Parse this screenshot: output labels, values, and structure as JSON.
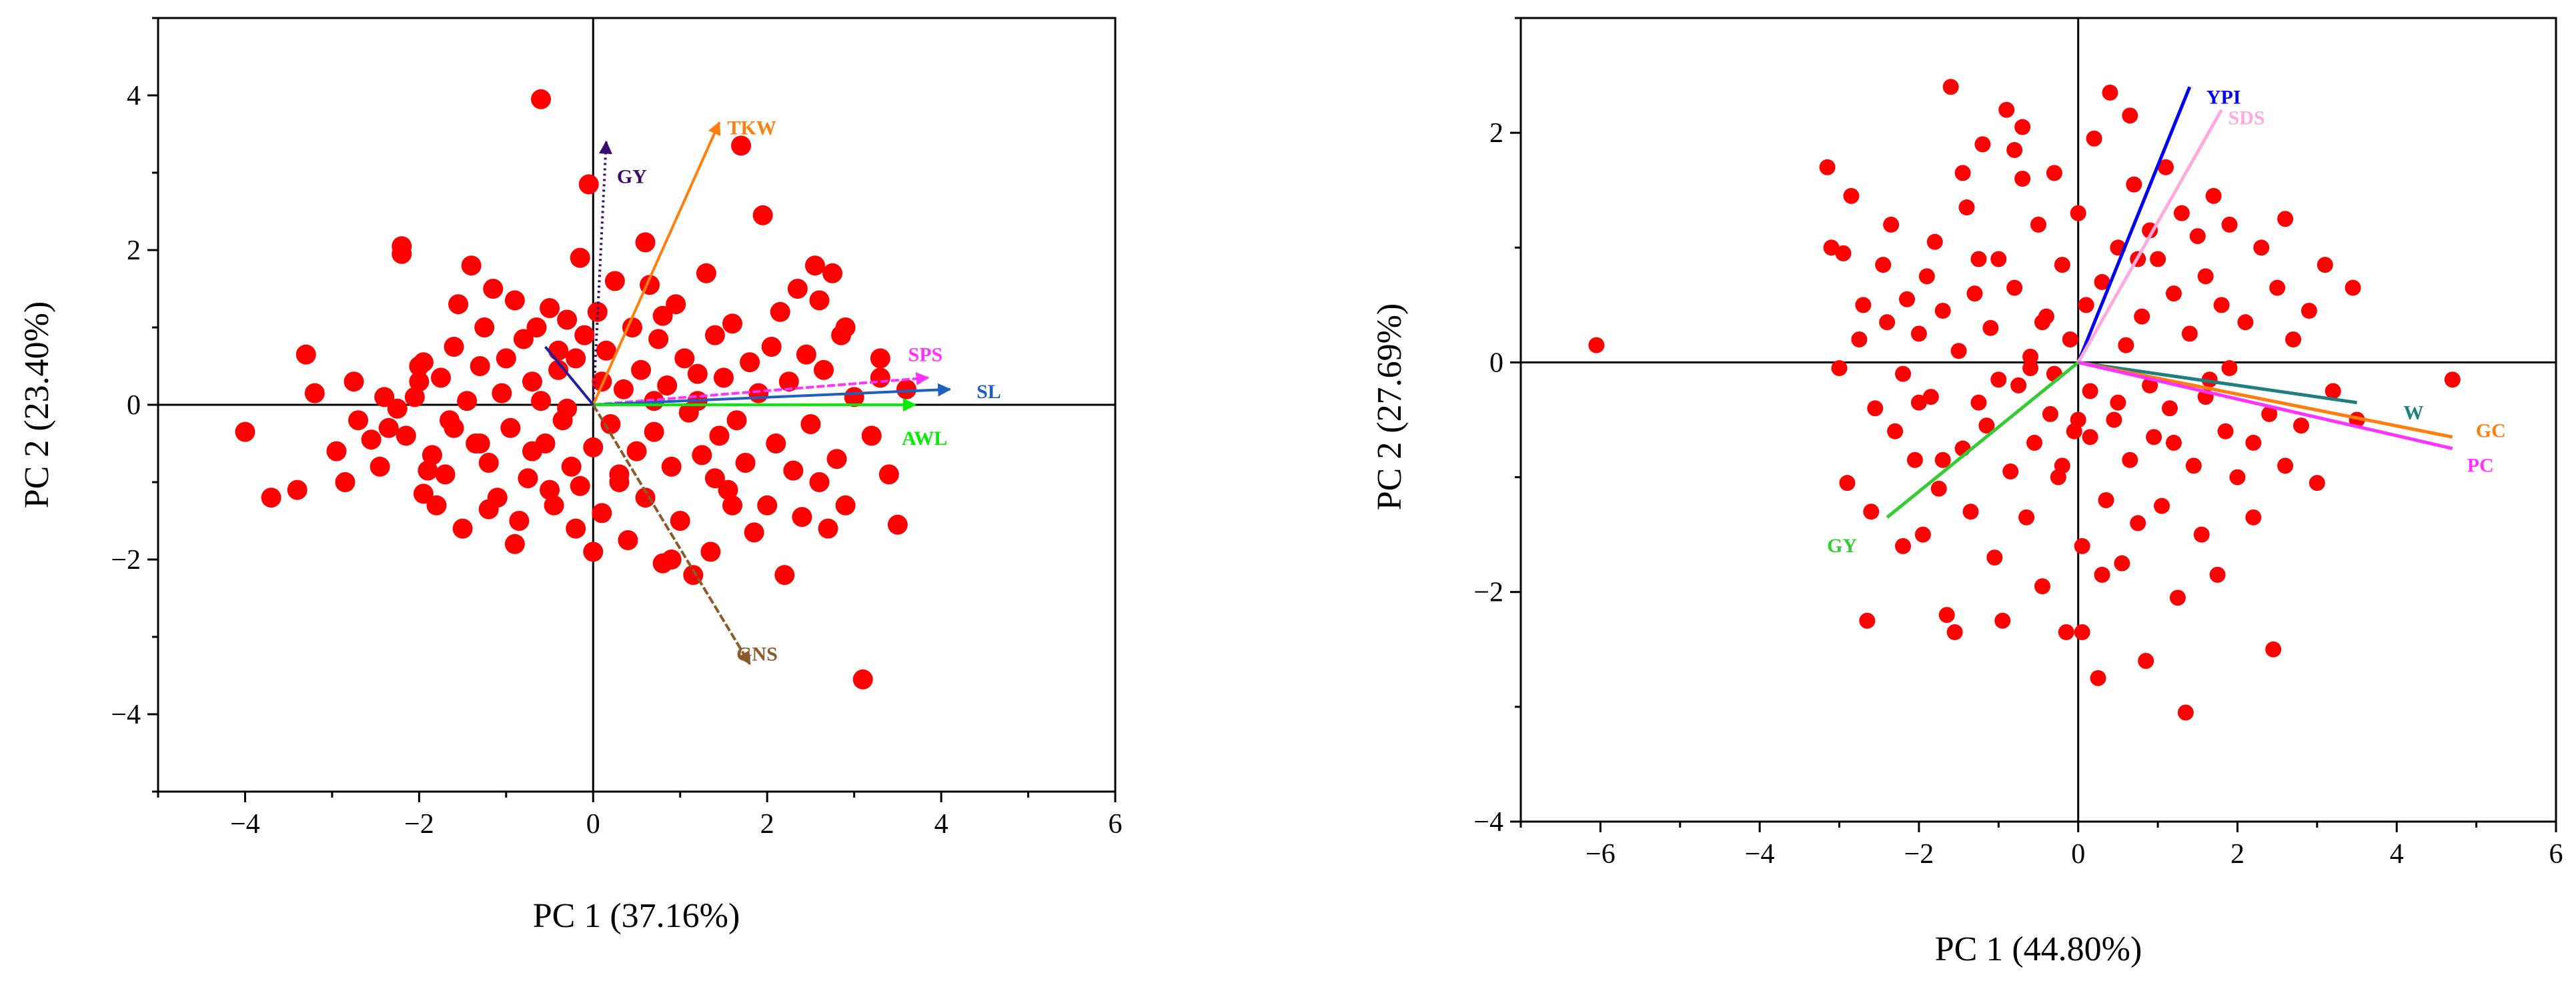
{
  "chart_data": [
    {
      "type": "scatter",
      "subtype": "pca-biplot",
      "xlabel": "PC 1 (37.16%)",
      "ylabel": "PC 2 (23.40%)",
      "xlim": [
        -5,
        6
      ],
      "ylim": [
        -5,
        5
      ],
      "xticks": [
        -4,
        -2,
        0,
        2,
        4,
        6
      ],
      "xtick_labels": [
        "−4",
        "−2",
        "0",
        "2",
        "4",
        "6"
      ],
      "yticks": [
        -4,
        -2,
        0,
        2,
        4
      ],
      "ytick_labels": [
        "−4",
        "−2",
        "0",
        "2",
        "4"
      ],
      "grid": false,
      "point_color": "#ff0000",
      "vectors": [
        {
          "label": "GY",
          "x": 0.15,
          "y": 3.4,
          "color": "#3d0a6b",
          "style": "dotted"
        },
        {
          "label": "TKW",
          "x": 1.45,
          "y": 3.65,
          "color": "#ff7f0e",
          "style": "solid"
        },
        {
          "label": "SPS",
          "x": 3.85,
          "y": 0.35,
          "color": "#ff33ff",
          "style": "dashed"
        },
        {
          "label": "SL",
          "x": 4.1,
          "y": 0.2,
          "color": "#1f5fbf",
          "style": "solid"
        },
        {
          "label": "AWL",
          "x": 3.7,
          "y": 0.0,
          "color": "#00ee00",
          "style": "solid"
        },
        {
          "label": "GNS",
          "x": 1.8,
          "y": -3.35,
          "color": "#8b5a2b",
          "style": "dashed"
        },
        {
          "label": "",
          "x": -0.55,
          "y": 0.75,
          "color": "#1f1f9f",
          "style": "solid"
        }
      ],
      "points": [
        [
          -4.0,
          -0.35
        ],
        [
          -3.7,
          -1.2
        ],
        [
          -3.4,
          -1.1
        ],
        [
          -3.3,
          0.65
        ],
        [
          -3.2,
          0.15
        ],
        [
          -2.95,
          -0.6
        ],
        [
          -2.85,
          -1.0
        ],
        [
          -2.75,
          0.3
        ],
        [
          -2.7,
          -0.2
        ],
        [
          -2.55,
          -0.45
        ],
        [
          -2.45,
          -0.8
        ],
        [
          -2.35,
          -0.3
        ],
        [
          -2.25,
          -0.05
        ],
        [
          -2.15,
          -0.4
        ],
        [
          -2.05,
          0.1
        ],
        [
          -2.0,
          0.3
        ],
        [
          -1.95,
          -1.15
        ],
        [
          -2.2,
          1.95
        ],
        [
          -2.2,
          2.05
        ],
        [
          -2.0,
          0.5
        ],
        [
          -1.95,
          0.55
        ],
        [
          -1.85,
          -0.65
        ],
        [
          -1.8,
          -1.3
        ],
        [
          -1.75,
          0.35
        ],
        [
          -1.7,
          -0.9
        ],
        [
          -1.65,
          -0.2
        ],
        [
          -1.6,
          0.75
        ],
        [
          -1.55,
          1.3
        ],
        [
          -1.5,
          -1.6
        ],
        [
          -1.45,
          0.05
        ],
        [
          -1.4,
          1.8
        ],
        [
          -1.35,
          -0.5
        ],
        [
          -1.3,
          0.5
        ],
        [
          -1.25,
          1.0
        ],
        [
          -1.2,
          -0.75
        ],
        [
          -1.15,
          1.5
        ],
        [
          -1.1,
          -1.2
        ],
        [
          -1.05,
          0.15
        ],
        [
          -1.0,
          0.6
        ],
        [
          -0.95,
          -0.3
        ],
        [
          -0.9,
          1.35
        ],
        [
          -0.85,
          -1.5
        ],
        [
          -0.8,
          0.85
        ],
        [
          -0.75,
          -0.95
        ],
        [
          -0.7,
          0.3
        ],
        [
          -0.65,
          1.0
        ],
        [
          -0.6,
          3.95
        ],
        [
          -0.55,
          -0.5
        ],
        [
          -0.5,
          1.25
        ],
        [
          -0.45,
          -1.3
        ],
        [
          -0.4,
          0.45
        ],
        [
          -0.35,
          -0.2
        ],
        [
          -0.3,
          1.1
        ],
        [
          -0.25,
          -0.8
        ],
        [
          -0.2,
          0.6
        ],
        [
          -0.15,
          -1.05
        ],
        [
          -0.1,
          0.9
        ],
        [
          -0.05,
          2.85
        ],
        [
          0.0,
          -0.55
        ],
        [
          0.05,
          1.2
        ],
        [
          0.1,
          -1.4
        ],
        [
          0.15,
          0.7
        ],
        [
          0.2,
          -0.25
        ],
        [
          0.25,
          1.6
        ],
        [
          0.3,
          -0.9
        ],
        [
          0.35,
          0.2
        ],
        [
          0.4,
          -1.75
        ],
        [
          0.45,
          1.0
        ],
        [
          0.5,
          -0.6
        ],
        [
          0.55,
          0.45
        ],
        [
          0.6,
          -1.2
        ],
        [
          0.65,
          1.55
        ],
        [
          0.7,
          -0.35
        ],
        [
          0.75,
          0.85
        ],
        [
          0.8,
          -2.05
        ],
        [
          0.85,
          0.25
        ],
        [
          0.9,
          -0.8
        ],
        [
          0.95,
          1.3
        ],
        [
          1.0,
          -1.5
        ],
        [
          1.05,
          0.6
        ],
        [
          1.1,
          -0.1
        ],
        [
          1.15,
          -2.2
        ],
        [
          1.2,
          0.4
        ],
        [
          1.25,
          -0.65
        ],
        [
          1.3,
          1.7
        ],
        [
          1.35,
          -1.9
        ],
        [
          1.4,
          0.9
        ],
        [
          1.45,
          -0.4
        ],
        [
          1.5,
          0.35
        ],
        [
          1.55,
          -1.1
        ],
        [
          1.6,
          1.05
        ],
        [
          1.65,
          -0.2
        ],
        [
          1.7,
          3.35
        ],
        [
          1.75,
          -0.75
        ],
        [
          1.8,
          0.55
        ],
        [
          1.85,
          -1.65
        ],
        [
          1.9,
          0.15
        ],
        [
          1.95,
          2.45
        ],
        [
          2.0,
          -1.3
        ],
        [
          2.05,
          0.75
        ],
        [
          2.1,
          -0.5
        ],
        [
          2.15,
          1.2
        ],
        [
          2.2,
          -2.2
        ],
        [
          2.25,
          0.3
        ],
        [
          2.3,
          -0.85
        ],
        [
          2.35,
          1.5
        ],
        [
          2.4,
          -1.45
        ],
        [
          2.45,
          0.65
        ],
        [
          2.5,
          -0.25
        ],
        [
          2.55,
          1.8
        ],
        [
          2.6,
          -1.0
        ],
        [
          2.65,
          0.45
        ],
        [
          2.7,
          -1.6
        ],
        [
          2.75,
          1.7
        ],
        [
          2.8,
          -0.7
        ],
        [
          2.85,
          0.9
        ],
        [
          2.9,
          -1.3
        ],
        [
          3.0,
          0.1
        ],
        [
          3.1,
          -3.55
        ],
        [
          3.2,
          -0.4
        ],
        [
          3.3,
          0.6
        ],
        [
          3.4,
          -0.9
        ],
        [
          3.5,
          -1.55
        ],
        [
          3.6,
          0.2
        ],
        [
          -0.3,
          -0.05
        ],
        [
          -0.6,
          0.05
        ],
        [
          0.7,
          0.05
        ],
        [
          1.2,
          0.05
        ],
        [
          -1.6,
          -0.3
        ],
        [
          -2.4,
          0.1
        ],
        [
          -0.9,
          -1.8
        ],
        [
          0.3,
          -1.0
        ],
        [
          0.9,
          -2.0
        ],
        [
          1.6,
          -1.3
        ],
        [
          -0.2,
          -1.6
        ],
        [
          -1.2,
          -1.35
        ],
        [
          0.0,
          -1.9
        ],
        [
          -0.5,
          -1.1
        ],
        [
          0.6,
          2.1
        ],
        [
          -0.15,
          1.9
        ],
        [
          2.9,
          1.0
        ],
        [
          2.6,
          1.35
        ],
        [
          3.3,
          0.35
        ],
        [
          -0.4,
          0.7
        ],
        [
          0.1,
          0.3
        ],
        [
          -1.9,
          -0.85
        ],
        [
          -1.3,
          -0.5
        ],
        [
          -0.7,
          -0.6
        ],
        [
          1.4,
          -0.95
        ],
        [
          0.8,
          1.15
        ]
      ]
    },
    {
      "type": "scatter",
      "subtype": "pca-biplot",
      "xlabel": "PC 1 (44.80%)",
      "ylabel": "PC 2 (27.69%)",
      "xlim": [
        -7,
        6
      ],
      "ylim": [
        -4,
        3
      ],
      "xticks": [
        -6,
        -4,
        -2,
        0,
        2,
        4,
        6
      ],
      "xtick_labels": [
        "−6",
        "−4",
        "−2",
        "0",
        "2",
        "4",
        "6"
      ],
      "yticks": [
        -4,
        -2,
        0,
        2
      ],
      "ytick_labels": [
        "−4",
        "−2",
        "0",
        "2"
      ],
      "grid": false,
      "point_color": "#ff0000",
      "vectors": [
        {
          "label": "YPI",
          "x": 1.4,
          "y": 2.4,
          "color": "#0000ee",
          "style": "solid"
        },
        {
          "label": "SDS",
          "x": 1.8,
          "y": 2.2,
          "color": "#ffaadd",
          "style": "solid"
        },
        {
          "label": "W",
          "x": 3.5,
          "y": -0.35,
          "color": "#1f7f7f",
          "style": "solid"
        },
        {
          "label": "GC",
          "x": 4.7,
          "y": -0.65,
          "color": "#ff7f0e",
          "style": "solid"
        },
        {
          "label": "PC",
          "x": 4.7,
          "y": -0.75,
          "color": "#ff33ff",
          "style": "solid"
        },
        {
          "label": "GY",
          "x": -2.4,
          "y": -1.35,
          "color": "#33cc33",
          "style": "solid"
        }
      ],
      "points": [
        [
          -6.05,
          0.15
        ],
        [
          -3.15,
          1.7
        ],
        [
          -3.1,
          1.0
        ],
        [
          -2.95,
          0.95
        ],
        [
          -3.0,
          -0.05
        ],
        [
          -2.9,
          -1.05
        ],
        [
          -2.85,
          1.45
        ],
        [
          -2.75,
          0.2
        ],
        [
          -2.7,
          0.5
        ],
        [
          -2.65,
          -2.25
        ],
        [
          -2.6,
          -1.3
        ],
        [
          -2.55,
          -0.4
        ],
        [
          -2.45,
          0.85
        ],
        [
          -2.4,
          0.35
        ],
        [
          -2.35,
          1.2
        ],
        [
          -2.3,
          -0.6
        ],
        [
          -2.2,
          -0.1
        ],
        [
          -2.15,
          0.55
        ],
        [
          -2.05,
          -0.85
        ],
        [
          -2.0,
          0.25
        ],
        [
          -1.95,
          -1.5
        ],
        [
          -1.9,
          0.75
        ],
        [
          -1.85,
          -0.3
        ],
        [
          -1.8,
          1.05
        ],
        [
          -1.75,
          -1.1
        ],
        [
          -1.7,
          0.45
        ],
        [
          -1.65,
          -2.2
        ],
        [
          -1.6,
          2.4
        ],
        [
          -1.55,
          -2.35
        ],
        [
          -1.5,
          0.1
        ],
        [
          -1.45,
          -0.75
        ],
        [
          -1.4,
          1.35
        ],
        [
          -1.35,
          -1.3
        ],
        [
          -1.3,
          0.6
        ],
        [
          -1.25,
          -0.35
        ],
        [
          -1.2,
          1.9
        ],
        [
          -1.15,
          -0.55
        ],
        [
          -1.1,
          0.3
        ],
        [
          -1.05,
          -1.7
        ],
        [
          -1.0,
          0.9
        ],
        [
          -0.95,
          -2.25
        ],
        [
          -0.9,
          2.2
        ],
        [
          -0.85,
          -0.95
        ],
        [
          -0.8,
          0.65
        ],
        [
          -0.75,
          -0.2
        ],
        [
          -0.7,
          1.6
        ],
        [
          -0.65,
          -1.35
        ],
        [
          -0.6,
          0.05
        ],
        [
          -0.55,
          -0.7
        ],
        [
          -0.5,
          1.2
        ],
        [
          -0.45,
          -1.95
        ],
        [
          -0.4,
          0.4
        ],
        [
          -0.35,
          -0.45
        ],
        [
          -0.3,
          1.65
        ],
        [
          -0.25,
          -1.0
        ],
        [
          -0.2,
          0.85
        ],
        [
          -0.15,
          -2.35
        ],
        [
          -0.1,
          0.2
        ],
        [
          -0.05,
          -0.6
        ],
        [
          0.0,
          1.3
        ],
        [
          0.05,
          -1.6
        ],
        [
          0.1,
          0.5
        ],
        [
          0.15,
          -0.25
        ],
        [
          0.2,
          1.95
        ],
        [
          0.25,
          -2.75
        ],
        [
          0.3,
          0.7
        ],
        [
          0.35,
          -1.2
        ],
        [
          0.4,
          2.35
        ],
        [
          0.45,
          -0.5
        ],
        [
          0.5,
          1.0
        ],
        [
          0.55,
          -1.75
        ],
        [
          0.6,
          0.15
        ],
        [
          0.65,
          -0.85
        ],
        [
          0.7,
          1.55
        ],
        [
          0.75,
          -1.4
        ],
        [
          0.8,
          0.4
        ],
        [
          0.85,
          -2.6
        ],
        [
          0.9,
          1.15
        ],
        [
          0.95,
          -0.65
        ],
        [
          1.0,
          0.9
        ],
        [
          1.05,
          -1.25
        ],
        [
          1.1,
          1.7
        ],
        [
          1.15,
          -0.4
        ],
        [
          1.2,
          0.6
        ],
        [
          1.25,
          -2.05
        ],
        [
          1.3,
          1.3
        ],
        [
          1.35,
          -3.05
        ],
        [
          1.4,
          0.25
        ],
        [
          1.45,
          -0.9
        ],
        [
          1.5,
          1.1
        ],
        [
          1.55,
          -1.5
        ],
        [
          1.6,
          0.75
        ],
        [
          1.65,
          -0.15
        ],
        [
          1.7,
          1.45
        ],
        [
          1.75,
          -1.85
        ],
        [
          1.8,
          0.5
        ],
        [
          1.85,
          -0.6
        ],
        [
          1.9,
          1.2
        ],
        [
          2.0,
          -1.0
        ],
        [
          2.1,
          0.35
        ],
        [
          2.2,
          -1.35
        ],
        [
          2.3,
          1.0
        ],
        [
          2.4,
          -0.45
        ],
        [
          2.45,
          -2.5
        ],
        [
          2.5,
          0.65
        ],
        [
          2.6,
          -0.9
        ],
        [
          2.7,
          0.2
        ],
        [
          2.8,
          -0.55
        ],
        [
          2.9,
          0.45
        ],
        [
          3.0,
          -1.05
        ],
        [
          3.1,
          0.85
        ],
        [
          3.2,
          -0.25
        ],
        [
          3.45,
          0.65
        ],
        [
          3.5,
          -0.5
        ],
        [
          4.7,
          -0.15
        ],
        [
          -0.6,
          -0.05
        ],
        [
          0.15,
          -0.65
        ],
        [
          -0.3,
          -0.1
        ],
        [
          0.5,
          -0.35
        ],
        [
          -1.0,
          -0.15
        ],
        [
          0.9,
          -0.2
        ],
        [
          -0.2,
          -0.9
        ],
        [
          0.05,
          -2.35
        ],
        [
          -0.7,
          2.05
        ],
        [
          0.65,
          2.15
        ],
        [
          -2.0,
          -0.35
        ],
        [
          1.2,
          -0.7
        ],
        [
          -1.7,
          -0.85
        ],
        [
          0.3,
          -1.85
        ],
        [
          2.6,
          1.25
        ],
        [
          -0.8,
          1.85
        ],
        [
          -2.2,
          -1.6
        ],
        [
          0.0,
          -0.5
        ],
        [
          1.6,
          -0.3
        ],
        [
          -1.25,
          0.9
        ],
        [
          2.2,
          -0.7
        ],
        [
          -0.45,
          0.35
        ],
        [
          0.75,
          0.9
        ],
        [
          -1.45,
          1.65
        ],
        [
          1.9,
          -0.05
        ]
      ]
    }
  ]
}
